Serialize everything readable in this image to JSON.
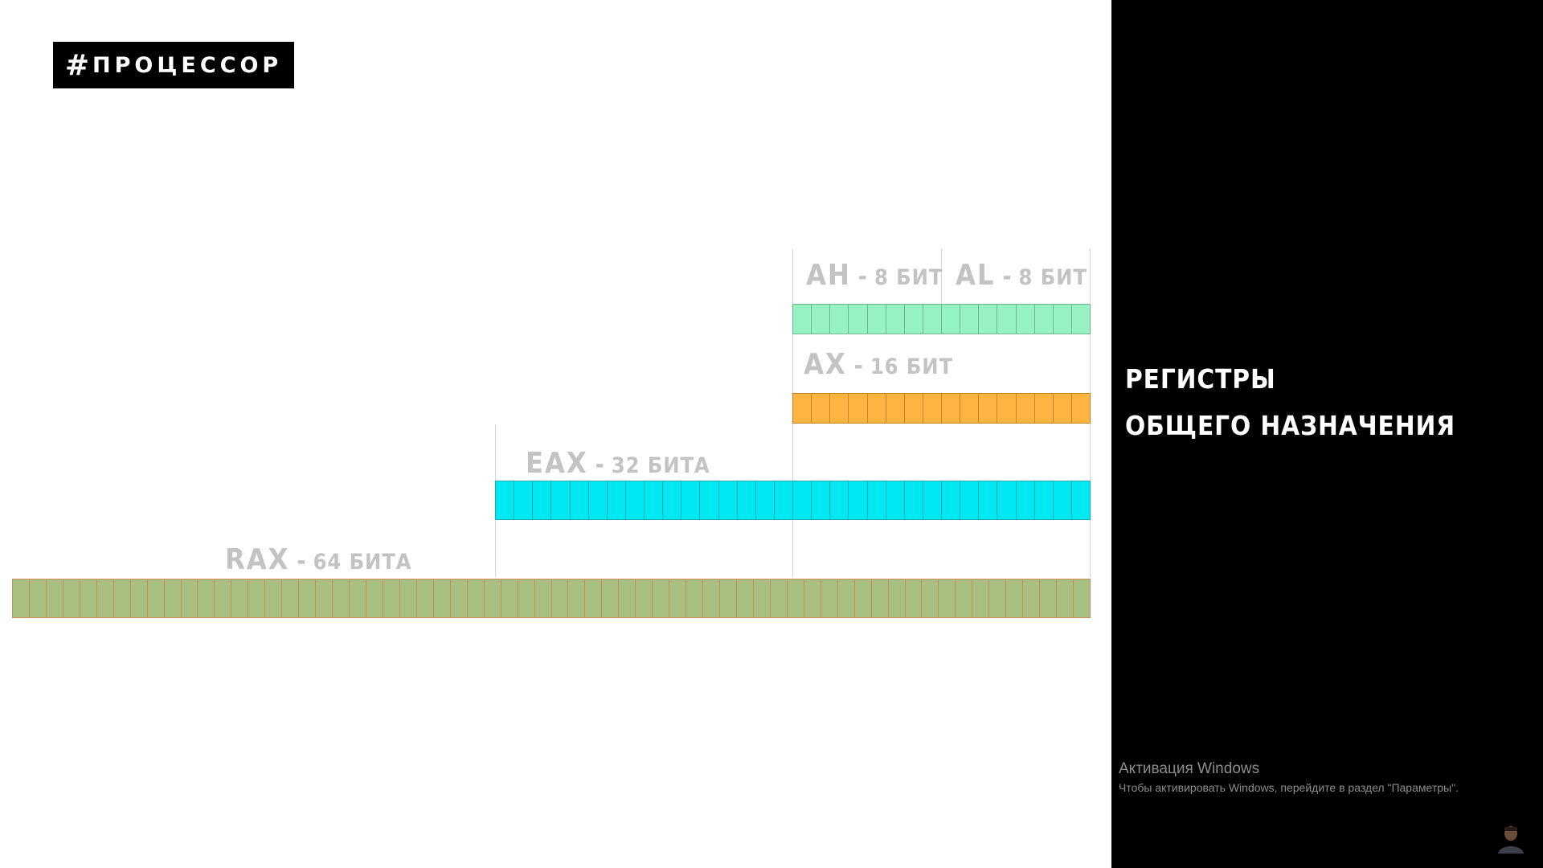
{
  "hashtag": {
    "symbol": "#",
    "text": "ПРОЦЕССОР"
  },
  "panel": {
    "title_line1": "РЕГИСТРЫ",
    "title_line2": "ОБЩЕГО НАЗНАЧЕНИЯ",
    "background": "#000000"
  },
  "registers": {
    "ah": {
      "name": "AH",
      "bits": "8 БИТ",
      "bit_count": 8,
      "color": "#96f2c3"
    },
    "al": {
      "name": "AL",
      "bits": "8 БИТ",
      "bit_count": 8,
      "color": "#96f2c3"
    },
    "ax": {
      "name": "AX",
      "bits": "16 БИТ",
      "bit_count": 16,
      "color": "#ffb340"
    },
    "eax": {
      "name": "EAX",
      "bits": "32 БИТА",
      "bit_count": 32,
      "color": "#00e9f2"
    },
    "rax": {
      "name": "RAX",
      "bits": "64 БИТА",
      "bit_count": 64,
      "color": "#a7c082"
    }
  },
  "watermark": {
    "title": "Активация Windows",
    "subtitle": "Чтобы активировать Windows, перейдите в раздел \"Параметры\"."
  },
  "icons": {
    "avatar": "presenter-avatar-icon"
  }
}
